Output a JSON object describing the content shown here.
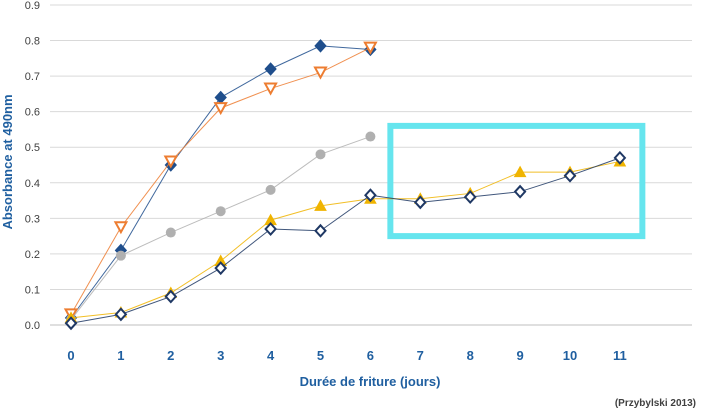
{
  "chart_data": {
    "type": "line",
    "xlabel": "Durée de friture (jours)",
    "ylabel": "Absorbance at 490nm",
    "source": "(Przybylski 2013)",
    "x_ticks": [
      "0",
      "1",
      "2",
      "3",
      "4",
      "5",
      "6",
      "7",
      "8",
      "9",
      "10",
      "11"
    ],
    "y_ticks": [
      "0.0",
      "0.1",
      "0.2",
      "0.3",
      "0.4",
      "0.5",
      "0.6",
      "0.7",
      "0.8",
      "0.9"
    ],
    "ylim": [
      0,
      0.9
    ],
    "xlim": [
      0,
      11
    ],
    "grid": true,
    "legend": "none",
    "series": [
      {
        "color": "#1f4e8c",
        "marker": "diamond-filled",
        "x": [
          0,
          1,
          2,
          3,
          4,
          5,
          6
        ],
        "values": [
          0.02,
          0.21,
          0.45,
          0.64,
          0.72,
          0.785,
          0.775
        ]
      },
      {
        "color": "#ed7d31",
        "marker": "triangle-down-open",
        "x": [
          0,
          1,
          2,
          3,
          4,
          5,
          6
        ],
        "values": [
          0.03,
          0.275,
          0.46,
          0.61,
          0.665,
          0.71,
          0.78
        ]
      },
      {
        "color": "#b0b0b0",
        "marker": "circle-filled",
        "x": [
          0,
          1,
          2,
          3,
          4,
          5,
          6
        ],
        "values": [
          0.015,
          0.195,
          0.26,
          0.32,
          0.38,
          0.48,
          0.53
        ]
      },
      {
        "color": "#f0b400",
        "marker": "triangle-up-filled",
        "x": [
          0,
          1,
          2,
          3,
          4,
          5,
          6,
          7,
          8,
          9,
          10,
          11
        ],
        "values": [
          0.02,
          0.035,
          0.09,
          0.18,
          0.295,
          0.335,
          0.355,
          0.355,
          0.37,
          0.43,
          0.43,
          0.46
        ]
      },
      {
        "color": "#1f3864",
        "marker": "diamond-open",
        "x": [
          0,
          1,
          2,
          3,
          4,
          5,
          6,
          7,
          8,
          9,
          10,
          11
        ],
        "values": [
          0.005,
          0.03,
          0.08,
          0.16,
          0.27,
          0.265,
          0.365,
          0.345,
          0.36,
          0.375,
          0.42,
          0.47
        ]
      }
    ],
    "highlight": {
      "x_range": [
        6.4,
        11.45
      ],
      "y_range": [
        0.25,
        0.56
      ],
      "color": "#66e5ee"
    }
  }
}
